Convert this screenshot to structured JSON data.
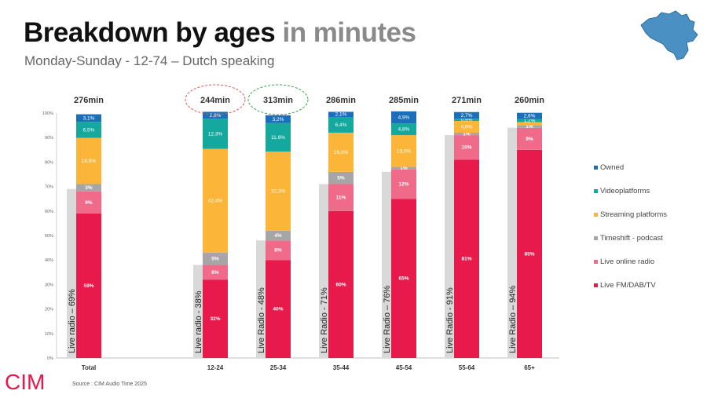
{
  "header": {
    "title_main": "Breakdown by ages",
    "title_accent": "in minutes",
    "subtitle": "Monday-Sunday - 12-74 – Dutch speaking"
  },
  "footer": {
    "source": "Source : CIM Audio Time 2025"
  },
  "logo": {
    "text": "CIM",
    "color": "#e6194b"
  },
  "map": {
    "icon": "belgium-map-icon",
    "color": "#4a90c2"
  },
  "chart_data": {
    "type": "bar",
    "stacked": true,
    "categories": [
      "Total",
      "12-24",
      "25-34",
      "35-44",
      "45-54",
      "55-64",
      "65+"
    ],
    "totals": [
      "276min",
      "244min",
      "313min",
      "286min",
      "285min",
      "271min",
      "260min"
    ],
    "highlighted_totals": [
      {
        "category": "12-24",
        "color": "#e15759"
      },
      {
        "category": "25-34",
        "color": "#3aa655"
      }
    ],
    "ylim": [
      0,
      100
    ],
    "y_ticks": [
      "0%",
      "10%",
      "20%",
      "30%",
      "40%",
      "50%",
      "60%",
      "70%",
      "80%",
      "90%",
      "100%"
    ],
    "series": [
      {
        "name": "Live FM/DAB/TV",
        "color": "#e8194b",
        "values": [
          59,
          32,
          40,
          60,
          65,
          81,
          85
        ],
        "labels": [
          "59%",
          "32%",
          "40%",
          "60%",
          "65%",
          "81%",
          "85%"
        ]
      },
      {
        "name": "Live online radio",
        "color": "#f06b8a",
        "values": [
          9,
          6,
          8,
          11,
          12,
          10,
          9
        ],
        "labels": [
          "9%",
          "6%",
          "8%",
          "11%",
          "12%",
          "10%",
          "9%"
        ]
      },
      {
        "name": "Timeshift - podcast",
        "color": "#a6a6a6",
        "values": [
          3,
          5,
          4,
          5,
          1,
          1,
          1
        ],
        "labels": [
          "3%",
          "5%",
          "4%",
          "5%",
          "1%",
          "1%",
          "1%"
        ]
      },
      {
        "name": "Streaming platforms",
        "color": "#fbb63a",
        "values": [
          18.9,
          42.4,
          32.3,
          16.0,
          13.0,
          4.8,
          1.3
        ],
        "labels": [
          "18,9%",
          "42,4%",
          "32,3%",
          "16,0%",
          "13,0%",
          "4,8%",
          ""
        ]
      },
      {
        "name": "Videoplatforms",
        "color": "#14a89e",
        "values": [
          6.5,
          12.3,
          11.6,
          6.4,
          4.8,
          0.9,
          1.2
        ],
        "labels": [
          "6,5%",
          "12,3%",
          "11,6%",
          "6,4%",
          "4,8%",
          "0,9%",
          "1,2%"
        ]
      },
      {
        "name": "Owned",
        "color": "#1b6fb8",
        "values": [
          3.1,
          2.8,
          3.2,
          2.1,
          4.9,
          2.7,
          2.6
        ],
        "labels": [
          "3,1%",
          "2,8%",
          "3,2%",
          "2,1%",
          "4,9%",
          "2,7%",
          "2,6%"
        ]
      }
    ],
    "live_radio": {
      "color": "#d9d9d9",
      "values": [
        69,
        38,
        48,
        71,
        76,
        91,
        94
      ],
      "labels": [
        "Live radio – 69%",
        "Live radio - 38%",
        "Live Radio - 48%",
        "Live Radio - 71%",
        "Live Radio – 76%",
        "Live Radio - 91%",
        "Live Radio – 94%"
      ]
    },
    "legend": {
      "position": "right"
    }
  }
}
